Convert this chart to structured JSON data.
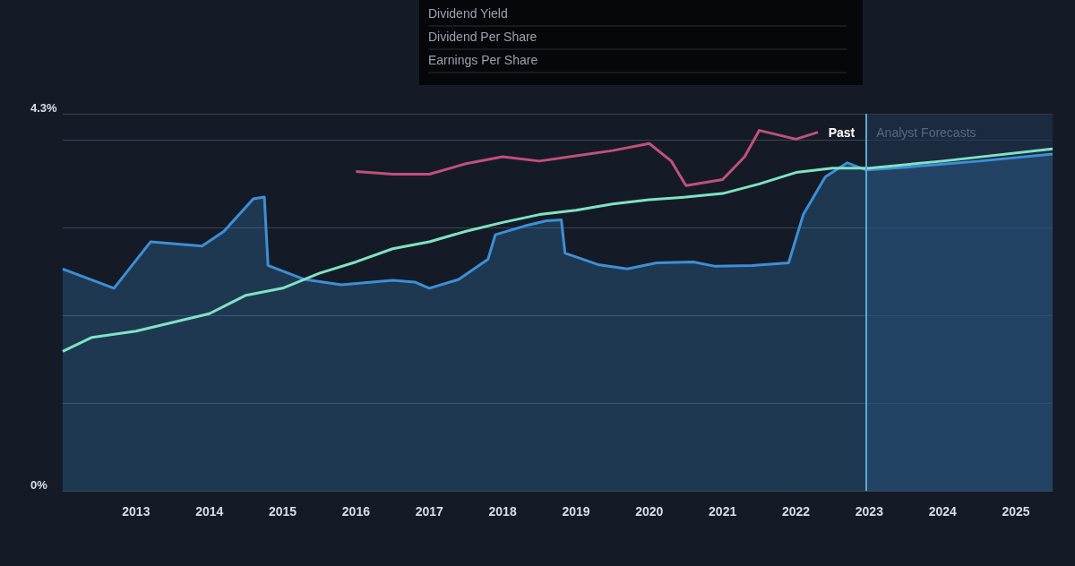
{
  "chart_data": {
    "type": "area",
    "xlim": [
      2012,
      2025.5
    ],
    "xticks": [
      2013,
      2014,
      2015,
      2016,
      2017,
      2018,
      2019,
      2020,
      2021,
      2022,
      2023,
      2024,
      2025
    ],
    "ylim": [
      0,
      4.3
    ],
    "yticks": [
      {
        "value": 0,
        "label": "0%"
      },
      {
        "value": 4.3,
        "label": "4.3%"
      }
    ],
    "grid": "y",
    "marker": "none",
    "series": [
      {
        "color": "#3d8fd6",
        "x": [
          2012,
          2012.7,
          2013.2,
          2013.9,
          2014.2,
          2014.6,
          2014.75,
          2014.8,
          2015.3,
          2015.8,
          2016.5,
          2016.8,
          2017,
          2017.4,
          2017.8,
          2017.9,
          2018.3,
          2018.6,
          2018.8,
          2018.85,
          2019.3,
          2019.7,
          2020.1,
          2020.6,
          2020.9,
          2021.4,
          2021.9,
          2022.1,
          2022.4,
          2022.7,
          2022.95,
          2023.5,
          2024.5,
          2025.5
        ],
        "values": [
          2.53,
          2.31,
          2.84,
          2.79,
          2.96,
          3.33,
          3.35,
          2.57,
          2.41,
          2.35,
          2.4,
          2.38,
          2.31,
          2.41,
          2.64,
          2.92,
          3.02,
          3.08,
          3.09,
          2.71,
          2.58,
          2.53,
          2.6,
          2.61,
          2.56,
          2.57,
          2.6,
          3.15,
          3.58,
          3.74,
          3.66,
          3.69,
          3.76,
          3.84
        ]
      },
      {
        "type": "line",
        "color": "#7fe3c2",
        "x": [
          2012,
          2012.4,
          2013,
          2013.5,
          2014,
          2014.5,
          2015,
          2015.5,
          2016,
          2016.5,
          2017,
          2017.5,
          2018,
          2018.5,
          2019,
          2019.5,
          2020,
          2020.5,
          2021,
          2021.5,
          2022,
          2022.5,
          2023,
          2024,
          2025.5
        ],
        "values": [
          1.59,
          1.75,
          1.82,
          1.92,
          2.02,
          2.23,
          2.31,
          2.48,
          2.61,
          2.76,
          2.84,
          2.96,
          3.06,
          3.15,
          3.2,
          3.27,
          3.32,
          3.35,
          3.39,
          3.5,
          3.63,
          3.68,
          3.68,
          3.76,
          3.9
        ]
      },
      {
        "type": "line",
        "color": "#c2507c",
        "x": [
          2016,
          2016.5,
          2017,
          2017.5,
          2018,
          2018.5,
          2019,
          2019.5,
          2020,
          2020.3,
          2020.5,
          2021,
          2021.3,
          2021.5,
          2022,
          2022.3
        ],
        "values": [
          3.64,
          3.61,
          3.61,
          3.73,
          3.81,
          3.76,
          3.82,
          3.88,
          3.96,
          3.76,
          3.48,
          3.55,
          3.81,
          4.11,
          4.01,
          4.09
        ]
      }
    ],
    "ref_lines": [
      {
        "axis": "x",
        "value": 2022.95,
        "label": "Past",
        "color": "#5aa9d6"
      }
    ],
    "bands": [
      {
        "axis": "x",
        "from": 2022.95,
        "to": 2025.5,
        "label": "Analyst Forecasts",
        "color": "#1f3550"
      }
    ],
    "annotations": [
      "Dividend Yield",
      "Dividend Per Share",
      "Earnings Per Share"
    ]
  }
}
